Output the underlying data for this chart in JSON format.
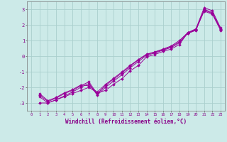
{
  "xlabel": "Windchill (Refroidissement éolien,°C)",
  "ylabel": "",
  "bg_color": "#cceae8",
  "grid_color": "#aacfcd",
  "line_color": "#990099",
  "xlim": [
    -0.5,
    23.5
  ],
  "ylim": [
    -3.5,
    3.5
  ],
  "yticks": [
    -3,
    -2,
    -1,
    0,
    1,
    2,
    3
  ],
  "xticks": [
    0,
    1,
    2,
    3,
    4,
    5,
    6,
    7,
    8,
    9,
    10,
    11,
    12,
    13,
    14,
    15,
    16,
    17,
    18,
    19,
    20,
    21,
    22,
    23
  ],
  "lines": [
    {
      "x": [
        1,
        2,
        3,
        4,
        5,
        6,
        7,
        8,
        9,
        10,
        11,
        12,
        13,
        14,
        15,
        16,
        17,
        18,
        19,
        20,
        21,
        22,
        23
      ],
      "y": [
        -3.0,
        -3.0,
        -2.8,
        -2.6,
        -2.4,
        -2.2,
        -2.0,
        -2.35,
        -2.2,
        -1.8,
        -1.45,
        -0.95,
        -0.6,
        -0.05,
        0.1,
        0.3,
        0.45,
        0.75,
        1.5,
        1.75,
        3.1,
        2.9,
        1.8
      ]
    },
    {
      "x": [
        1,
        2,
        3,
        4,
        5,
        6,
        7,
        8,
        9,
        10,
        11,
        12,
        13,
        14,
        15,
        16,
        17,
        18,
        19,
        20,
        21,
        22,
        23
      ],
      "y": [
        -2.6,
        -3.0,
        -2.8,
        -2.55,
        -2.3,
        -2.0,
        -1.75,
        -2.5,
        -2.0,
        -1.6,
        -1.2,
        -0.75,
        -0.35,
        0.05,
        0.2,
        0.38,
        0.55,
        0.85,
        1.45,
        1.65,
        3.0,
        2.78,
        1.75
      ]
    },
    {
      "x": [
        1,
        2,
        3,
        4,
        5,
        6,
        7,
        8,
        9,
        10,
        11,
        12,
        13,
        14,
        15,
        16,
        17,
        18,
        19,
        20,
        21,
        22,
        23
      ],
      "y": [
        -2.5,
        -2.9,
        -2.7,
        -2.4,
        -2.2,
        -1.9,
        -1.65,
        -2.42,
        -1.88,
        -1.48,
        -1.08,
        -0.65,
        -0.25,
        0.1,
        0.25,
        0.42,
        0.6,
        0.92,
        1.47,
        1.67,
        2.95,
        2.73,
        1.7
      ]
    },
    {
      "x": [
        1,
        2,
        3,
        4,
        5,
        6,
        7,
        8,
        9,
        10,
        11,
        12,
        13,
        14,
        15,
        16,
        17,
        18,
        19,
        20,
        21,
        22,
        23
      ],
      "y": [
        -2.4,
        -2.85,
        -2.65,
        -2.35,
        -2.15,
        -1.85,
        -1.9,
        -2.3,
        -1.82,
        -1.42,
        -1.02,
        -0.6,
        -0.22,
        0.12,
        0.27,
        0.45,
        0.65,
        1.0,
        1.5,
        1.7,
        2.88,
        2.68,
        1.65
      ]
    }
  ]
}
